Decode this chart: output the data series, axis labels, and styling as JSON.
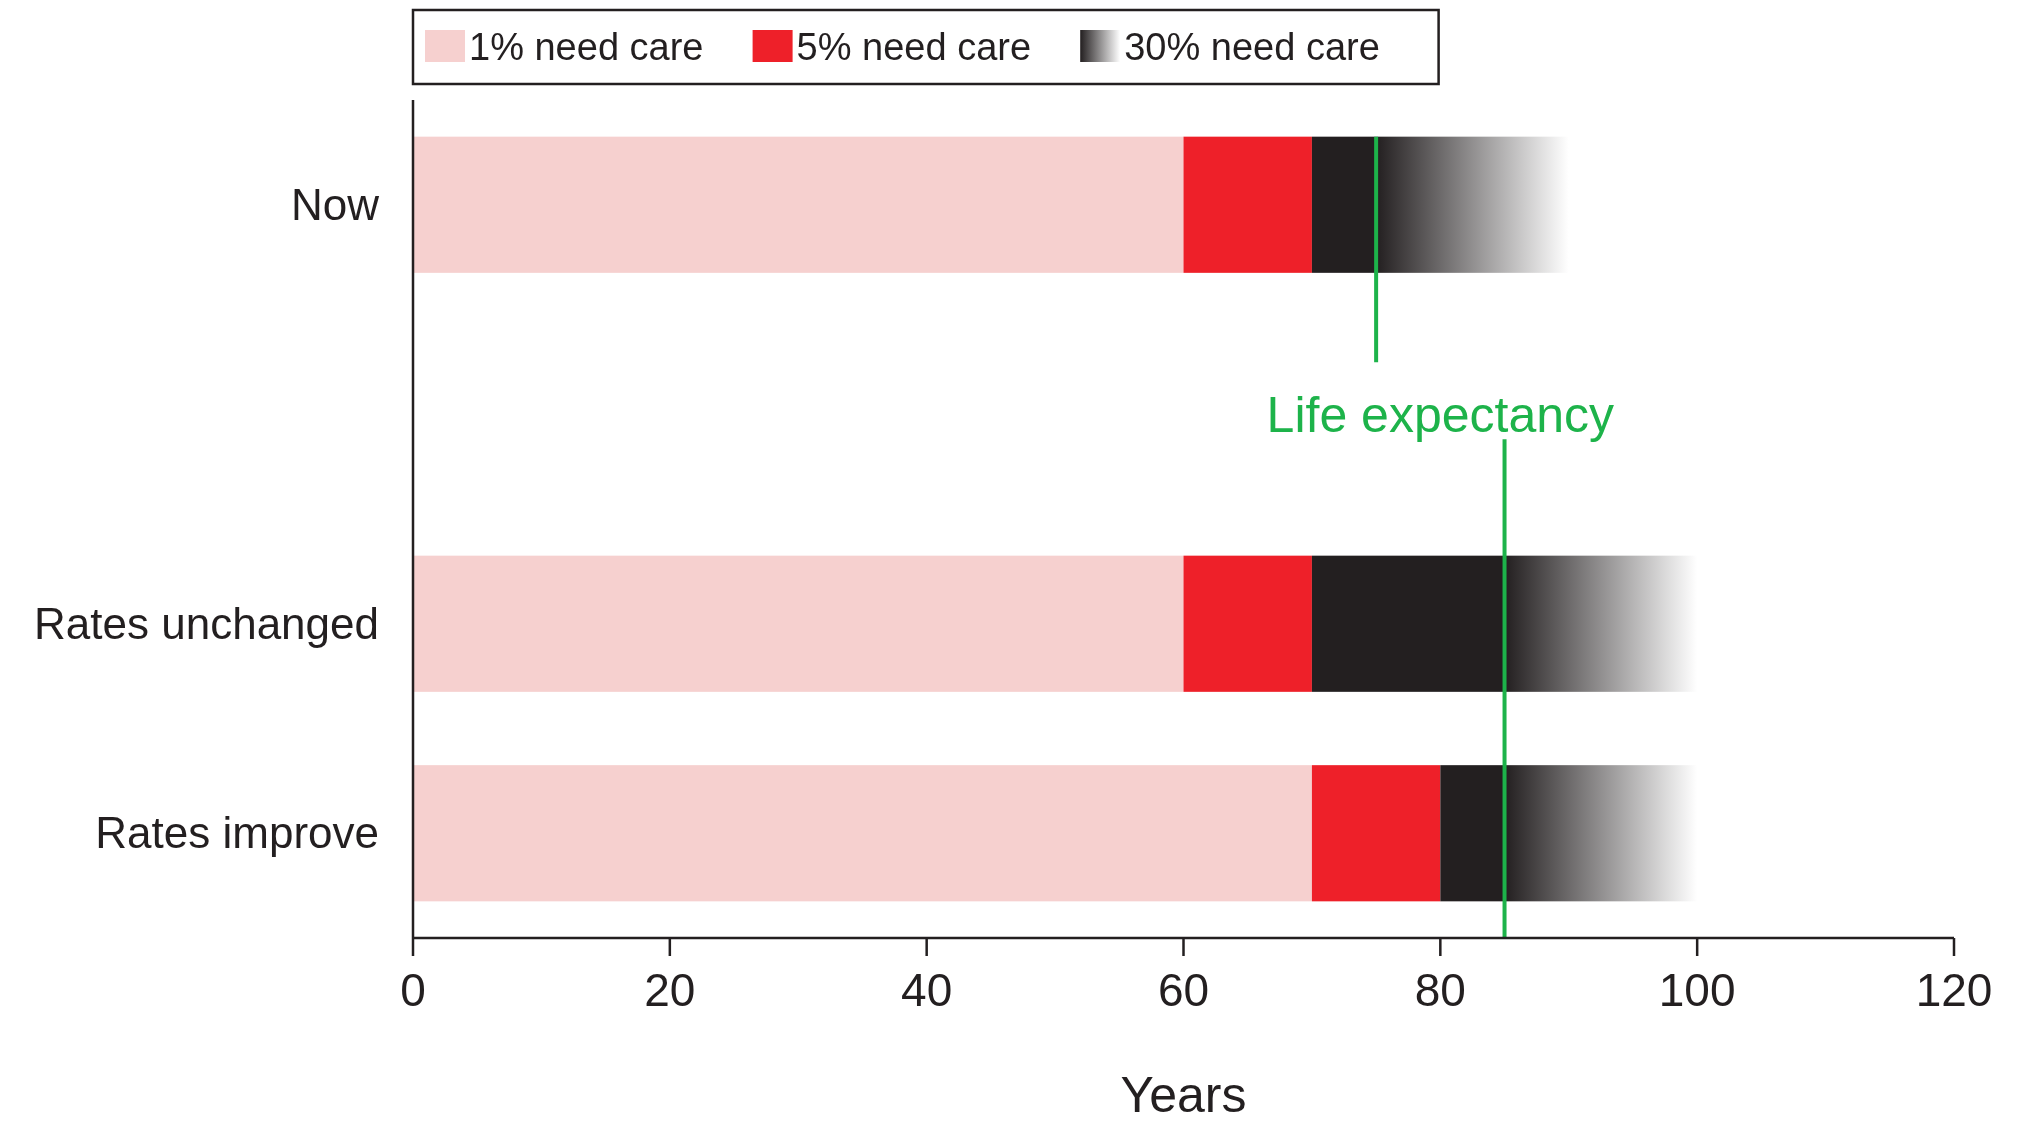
{
  "chart_data": {
    "type": "bar",
    "orientation": "horizontal",
    "stacked": true,
    "xlabel": "Years",
    "categories": [
      "Now",
      null,
      "Rates unchanged",
      "Rates improve"
    ],
    "series": [
      {
        "name": "1% need care",
        "color": "#f6d0cf",
        "values": [
          60,
          null,
          60,
          70
        ]
      },
      {
        "name": "5% need care",
        "color": "#ee2029",
        "values": [
          10,
          null,
          10,
          10
        ]
      },
      {
        "name": "30% need care",
        "color": "#231f20",
        "values": [
          20,
          null,
          30,
          20
        ]
      }
    ],
    "xlim": [
      0,
      120
    ],
    "xticks": [
      0,
      20,
      40,
      60,
      80,
      100,
      120
    ],
    "ref_lines": [
      {
        "axis": "x",
        "value": 75,
        "label": "Life expectancy",
        "color": "#1db34a"
      },
      {
        "axis": "x",
        "value": 85,
        "color": "#1db34a"
      }
    ],
    "legend": "top"
  }
}
